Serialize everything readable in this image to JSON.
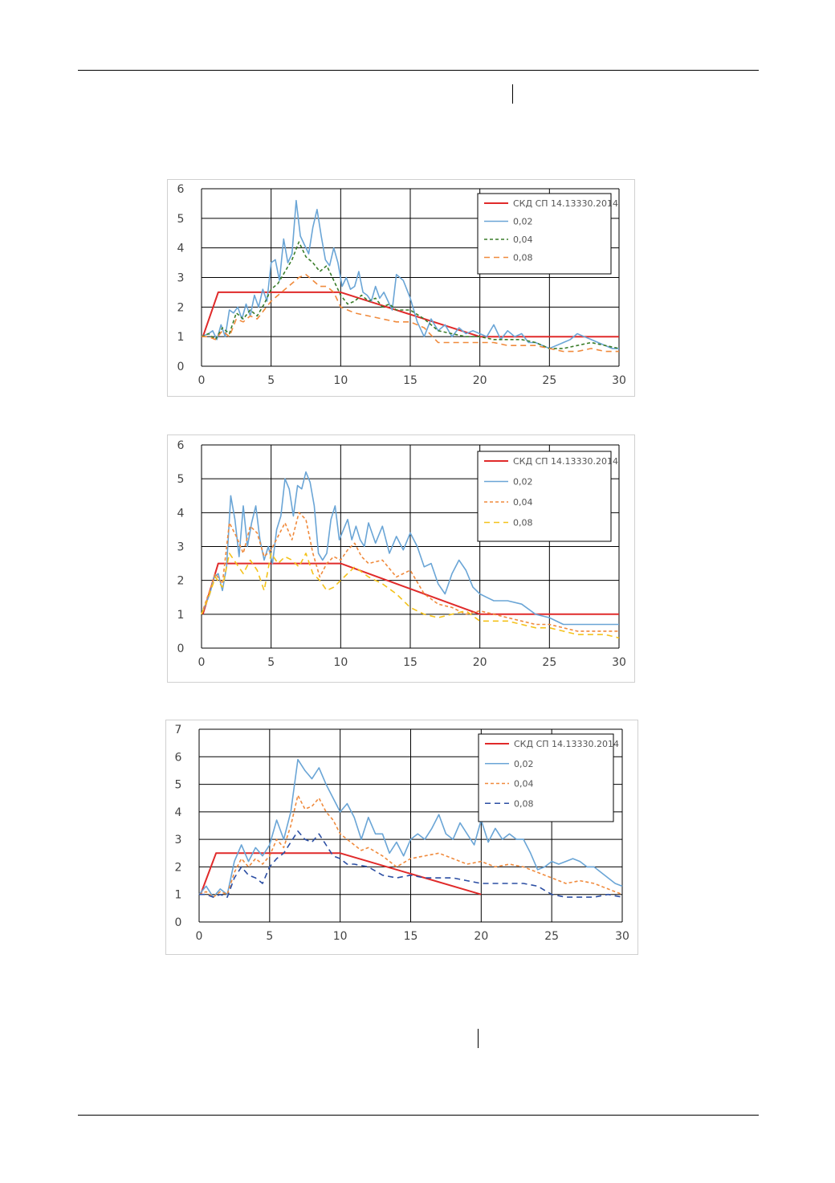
{
  "chart_data": [
    {
      "type": "line",
      "xlim": [
        0,
        30
      ],
      "ylim": [
        0,
        6
      ],
      "x_ticks": [
        "0",
        "5",
        "10",
        "15",
        "20",
        "25",
        "30"
      ],
      "y_ticks": [
        "0",
        "1",
        "2",
        "3",
        "4",
        "5",
        "6"
      ],
      "grid": true,
      "legend_position": "top-right",
      "series": [
        {
          "name": "СКД СП 14.13330.2014",
          "color": "#e02a2a",
          "dash": "solid",
          "x": [
            0.1,
            1.2,
            10,
            20,
            30
          ],
          "y": [
            1.0,
            2.5,
            2.5,
            1.0,
            1.0
          ]
        },
        {
          "name": "0,02",
          "color": "#6aa5d6",
          "dash": "solid",
          "x": [
            0.0,
            0.5,
            0.8,
            1.1,
            1.4,
            1.7,
            2.0,
            2.3,
            2.6,
            2.9,
            3.2,
            3.5,
            3.8,
            4.1,
            4.4,
            4.7,
            5.0,
            5.3,
            5.6,
            5.9,
            6.2,
            6.5,
            6.8,
            7.1,
            7.4,
            7.7,
            8.0,
            8.3,
            8.6,
            8.9,
            9.2,
            9.5,
            9.8,
            10.1,
            10.4,
            10.7,
            11.0,
            11.3,
            11.6,
            11.9,
            12.2,
            12.5,
            12.8,
            13.1,
            13.4,
            13.7,
            14.0,
            14.5,
            15.0,
            15.5,
            16.0,
            16.5,
            17.0,
            17.5,
            18.0,
            18.5,
            19.0,
            19.5,
            20.0,
            20.5,
            21.0,
            21.5,
            22.0,
            22.5,
            23.0,
            23.5,
            24.0,
            24.5,
            25.0,
            25.5,
            26.0,
            26.5,
            27.0,
            27.5,
            28.0,
            28.5,
            29.0,
            29.5,
            30.0
          ],
          "y": [
            1.0,
            1.1,
            1.2,
            0.9,
            1.4,
            1.0,
            1.9,
            1.8,
            2.0,
            1.6,
            2.1,
            1.7,
            2.4,
            2.0,
            2.6,
            2.2,
            3.5,
            3.6,
            2.9,
            4.3,
            3.5,
            3.8,
            5.6,
            4.4,
            4.1,
            3.8,
            4.7,
            5.3,
            4.4,
            3.6,
            3.4,
            4.0,
            3.5,
            2.7,
            3.0,
            2.6,
            2.7,
            3.2,
            2.5,
            2.4,
            2.2,
            2.7,
            2.3,
            2.5,
            2.2,
            1.9,
            3.1,
            2.9,
            2.3,
            1.5,
            1.0,
            1.6,
            1.2,
            1.4,
            1.0,
            1.3,
            1.1,
            1.2,
            1.1,
            1.0,
            1.4,
            0.9,
            1.2,
            1.0,
            1.1,
            0.8,
            0.8,
            0.7,
            0.6,
            0.7,
            0.8,
            0.9,
            1.1,
            1.0,
            0.9,
            0.8,
            0.7,
            0.6,
            0.6
          ]
        },
        {
          "name": "0,04",
          "color": "#3a7d2a",
          "dash": "4,3",
          "x": [
            0.0,
            0.5,
            1.0,
            1.5,
            2.0,
            2.5,
            3.0,
            3.5,
            4.0,
            4.5,
            5.0,
            5.5,
            6.0,
            6.5,
            7.0,
            7.5,
            8.0,
            8.5,
            9.0,
            9.5,
            10.0,
            10.5,
            11.0,
            11.5,
            12.0,
            12.5,
            13.0,
            13.5,
            14.0,
            15.0,
            16.0,
            17.0,
            18.0,
            19.0,
            20.0,
            21.0,
            22.0,
            23.0,
            24.0,
            25.0,
            26.0,
            27.0,
            28.0,
            29.0,
            30.0
          ],
          "y": [
            1.0,
            1.1,
            0.9,
            1.3,
            1.1,
            1.8,
            1.6,
            1.9,
            1.7,
            2.1,
            2.6,
            2.8,
            3.2,
            3.6,
            4.2,
            3.7,
            3.5,
            3.2,
            3.4,
            2.9,
            2.4,
            2.1,
            2.2,
            2.4,
            2.2,
            2.3,
            2.0,
            2.1,
            1.9,
            1.9,
            1.6,
            1.2,
            1.1,
            1.0,
            1.0,
            0.9,
            0.9,
            0.9,
            0.8,
            0.6,
            0.6,
            0.7,
            0.8,
            0.7,
            0.6
          ]
        },
        {
          "name": "0,08",
          "color": "#f08a3c",
          "dash": "7,5",
          "x": [
            0.0,
            0.5,
            1.0,
            1.5,
            2.0,
            2.5,
            3.0,
            3.5,
            4.0,
            4.5,
            5.0,
            5.5,
            6.0,
            6.5,
            7.0,
            7.5,
            8.0,
            8.5,
            9.0,
            9.5,
            10.0,
            11.0,
            12.0,
            13.0,
            14.0,
            15.0,
            16.0,
            17.0,
            18.0,
            19.0,
            20.0,
            21.0,
            22.0,
            23.0,
            24.0,
            25.0,
            26.0,
            27.0,
            28.0,
            29.0,
            30.0
          ],
          "y": [
            1.0,
            1.0,
            0.9,
            1.2,
            1.0,
            1.6,
            1.5,
            1.7,
            1.6,
            1.9,
            2.2,
            2.4,
            2.6,
            2.8,
            3.0,
            3.1,
            2.9,
            2.7,
            2.7,
            2.5,
            2.0,
            1.8,
            1.7,
            1.6,
            1.5,
            1.5,
            1.3,
            0.8,
            0.8,
            0.8,
            0.8,
            0.8,
            0.7,
            0.7,
            0.7,
            0.6,
            0.5,
            0.5,
            0.6,
            0.5,
            0.5
          ]
        }
      ]
    },
    {
      "type": "line",
      "xlim": [
        0,
        30
      ],
      "ylim": [
        0,
        6
      ],
      "x_ticks": [
        "0",
        "5",
        "10",
        "15",
        "20",
        "25",
        "30"
      ],
      "y_ticks": [
        "0",
        "1",
        "2",
        "3",
        "4",
        "5",
        "6"
      ],
      "grid": true,
      "legend_position": "top-right",
      "series": [
        {
          "name": "СКД СП 14.13330.2014",
          "color": "#e02a2a",
          "dash": "solid",
          "x": [
            0.1,
            1.2,
            10,
            20,
            30
          ],
          "y": [
            1.0,
            2.5,
            2.5,
            1.0,
            1.0
          ]
        },
        {
          "name": "0,02",
          "color": "#6aa5d6",
          "dash": "solid",
          "x": [
            0.0,
            0.3,
            0.6,
            0.9,
            1.2,
            1.5,
            1.8,
            2.1,
            2.4,
            2.7,
            3.0,
            3.3,
            3.6,
            3.9,
            4.2,
            4.5,
            4.8,
            5.1,
            5.4,
            5.7,
            6.0,
            6.3,
            6.6,
            6.9,
            7.2,
            7.5,
            7.8,
            8.1,
            8.4,
            8.7,
            9.0,
            9.3,
            9.6,
            9.9,
            10.2,
            10.5,
            10.8,
            11.1,
            11.4,
            11.7,
            12.0,
            12.5,
            13.0,
            13.5,
            14.0,
            14.5,
            15.0,
            15.5,
            16.0,
            16.5,
            17.0,
            17.5,
            18.0,
            18.5,
            19.0,
            19.5,
            20.0,
            20.5,
            21.0,
            22.0,
            23.0,
            24.0,
            25.0,
            26.0,
            27.0,
            28.0,
            29.0,
            30.0
          ],
          "y": [
            1.0,
            1.3,
            1.6,
            2.1,
            2.2,
            1.7,
            2.4,
            4.5,
            3.8,
            2.7,
            4.2,
            3.0,
            3.7,
            4.2,
            3.2,
            2.6,
            3.0,
            2.5,
            3.5,
            3.9,
            5.0,
            4.7,
            3.9,
            4.8,
            4.7,
            5.2,
            4.9,
            4.2,
            2.8,
            2.6,
            2.8,
            3.8,
            4.2,
            3.2,
            3.5,
            3.8,
            3.2,
            3.6,
            3.2,
            3.0,
            3.7,
            3.1,
            3.6,
            2.8,
            3.3,
            2.9,
            3.4,
            3.0,
            2.4,
            2.5,
            1.9,
            1.6,
            2.2,
            2.6,
            2.3,
            1.8,
            1.6,
            1.5,
            1.4,
            1.4,
            1.3,
            1.0,
            0.9,
            0.7,
            0.7,
            0.7,
            0.7,
            0.7
          ]
        },
        {
          "name": "0,04",
          "color": "#f08a3c",
          "dash": "4,3",
          "x": [
            0.0,
            0.5,
            1.0,
            1.5,
            2.0,
            2.5,
            3.0,
            3.5,
            4.0,
            4.5,
            5.0,
            5.5,
            6.0,
            6.5,
            7.0,
            7.5,
            8.0,
            8.5,
            9.0,
            9.5,
            10.0,
            10.5,
            11.0,
            11.5,
            12.0,
            13.0,
            14.0,
            15.0,
            16.0,
            17.0,
            18.0,
            19.0,
            20.0,
            21.0,
            22.0,
            23.0,
            24.0,
            25.0,
            26.0,
            27.0,
            28.0,
            29.0,
            30.0
          ],
          "y": [
            1.0,
            1.6,
            2.2,
            1.9,
            3.7,
            3.3,
            2.8,
            3.6,
            3.4,
            2.7,
            2.9,
            3.3,
            3.7,
            3.2,
            4.0,
            3.8,
            2.8,
            2.1,
            2.5,
            2.7,
            2.6,
            2.9,
            3.1,
            2.7,
            2.5,
            2.6,
            2.1,
            2.3,
            1.6,
            1.3,
            1.2,
            1.0,
            1.1,
            1.0,
            0.9,
            0.8,
            0.7,
            0.7,
            0.6,
            0.5,
            0.5,
            0.5,
            0.5
          ]
        },
        {
          "name": "0,08",
          "color": "#f4c21a",
          "dash": "7,5",
          "x": [
            0.0,
            0.5,
            1.0,
            1.5,
            2.0,
            2.5,
            3.0,
            3.5,
            4.0,
            4.5,
            5.0,
            5.5,
            6.0,
            6.5,
            7.0,
            7.5,
            8.0,
            8.5,
            9.0,
            9.5,
            10.0,
            10.5,
            11.0,
            12.0,
            13.0,
            14.0,
            15.0,
            16.0,
            17.0,
            18.0,
            19.0,
            20.0,
            21.0,
            22.0,
            23.0,
            24.0,
            25.0,
            26.0,
            27.0,
            28.0,
            29.0,
            30.0
          ],
          "y": [
            1.0,
            1.5,
            2.1,
            1.8,
            2.8,
            2.5,
            2.2,
            2.6,
            2.3,
            1.7,
            2.8,
            2.5,
            2.7,
            2.6,
            2.4,
            2.8,
            2.2,
            2.0,
            1.7,
            1.8,
            2.0,
            2.2,
            2.4,
            2.1,
            1.9,
            1.6,
            1.2,
            1.0,
            0.9,
            1.0,
            1.1,
            0.8,
            0.8,
            0.8,
            0.7,
            0.6,
            0.6,
            0.5,
            0.4,
            0.4,
            0.4,
            0.3
          ]
        }
      ]
    },
    {
      "type": "line",
      "xlim": [
        0,
        30
      ],
      "ylim": [
        0,
        7
      ],
      "x_ticks": [
        "0",
        "5",
        "10",
        "15",
        "20",
        "25",
        "30"
      ],
      "y_ticks": [
        "0",
        "1",
        "2",
        "3",
        "4",
        "5",
        "6",
        "7"
      ],
      "grid": true,
      "legend_position": "top-right",
      "series": [
        {
          "name": "СКД СП 14.13330.2014",
          "color": "#e02a2a",
          "dash": "solid",
          "x": [
            0.1,
            1.2,
            10,
            20
          ],
          "y": [
            1.0,
            2.5,
            2.5,
            1.0
          ]
        },
        {
          "name": "0,02",
          "color": "#6aa5d6",
          "dash": "solid",
          "x": [
            0.0,
            0.5,
            1.0,
            1.5,
            2.0,
            2.5,
            3.0,
            3.5,
            4.0,
            4.5,
            5.0,
            5.5,
            6.0,
            6.5,
            7.0,
            7.5,
            8.0,
            8.5,
            9.0,
            9.5,
            10.0,
            10.5,
            11.0,
            11.5,
            12.0,
            12.5,
            13.0,
            13.5,
            14.0,
            14.5,
            15.0,
            15.5,
            16.0,
            16.5,
            17.0,
            17.5,
            18.0,
            18.5,
            19.0,
            19.5,
            20.0,
            20.5,
            21.0,
            21.5,
            22.0,
            22.5,
            23.0,
            23.5,
            24.0,
            24.5,
            25.0,
            25.5,
            26.0,
            26.5,
            27.0,
            27.5,
            28.0,
            28.5,
            29.0,
            29.5,
            30.0
          ],
          "y": [
            1.0,
            1.3,
            0.9,
            1.2,
            1.0,
            2.2,
            2.8,
            2.2,
            2.7,
            2.4,
            2.8,
            3.7,
            3.0,
            4.0,
            5.9,
            5.5,
            5.2,
            5.6,
            5.0,
            4.5,
            4.0,
            4.3,
            3.8,
            3.0,
            3.8,
            3.2,
            3.2,
            2.5,
            2.9,
            2.4,
            3.0,
            3.2,
            3.0,
            3.4,
            3.9,
            3.2,
            3.0,
            3.6,
            3.2,
            2.8,
            3.7,
            2.9,
            3.4,
            3.0,
            3.2,
            3.0,
            3.0,
            2.5,
            1.9,
            2.0,
            2.2,
            2.1,
            2.2,
            2.3,
            2.2,
            2.0,
            2.0,
            1.8,
            1.6,
            1.4,
            1.3
          ]
        },
        {
          "name": "0,04",
          "color": "#f08a3c",
          "dash": "4,3",
          "x": [
            0.0,
            0.5,
            1.0,
            1.5,
            2.0,
            2.5,
            3.0,
            3.5,
            4.0,
            4.5,
            5.0,
            5.5,
            6.0,
            6.5,
            7.0,
            7.5,
            8.0,
            8.5,
            9.0,
            9.5,
            10.0,
            10.5,
            11.0,
            11.5,
            12.0,
            13.0,
            14.0,
            15.0,
            16.0,
            17.0,
            18.0,
            19.0,
            20.0,
            21.0,
            22.0,
            23.0,
            24.0,
            25.0,
            26.0,
            27.0,
            28.0,
            29.0,
            30.0
          ],
          "y": [
            1.0,
            1.1,
            0.9,
            1.1,
            1.0,
            1.8,
            2.3,
            2.0,
            2.3,
            2.1,
            2.4,
            3.0,
            2.7,
            3.5,
            4.6,
            4.1,
            4.2,
            4.5,
            4.0,
            3.7,
            3.2,
            3.0,
            2.8,
            2.6,
            2.7,
            2.4,
            2.0,
            2.3,
            2.4,
            2.5,
            2.3,
            2.1,
            2.2,
            2.0,
            2.1,
            2.0,
            1.8,
            1.6,
            1.4,
            1.5,
            1.4,
            1.2,
            1.0
          ]
        },
        {
          "name": "0,08",
          "color": "#2b4ea3",
          "dash": "7,5",
          "x": [
            0.0,
            0.5,
            1.0,
            1.5,
            2.0,
            2.5,
            3.0,
            3.5,
            4.0,
            4.5,
            5.0,
            5.5,
            6.0,
            6.5,
            7.0,
            7.5,
            8.0,
            8.5,
            9.0,
            9.5,
            10.0,
            10.5,
            11.0,
            12.0,
            13.0,
            14.0,
            15.0,
            16.0,
            17.0,
            18.0,
            19.0,
            20.0,
            21.0,
            22.0,
            23.0,
            24.0,
            25.0,
            26.0,
            27.0,
            28.0,
            29.0,
            30.0
          ],
          "y": [
            1.0,
            1.0,
            0.9,
            1.0,
            0.9,
            1.6,
            2.0,
            1.7,
            1.6,
            1.4,
            2.0,
            2.3,
            2.5,
            2.9,
            3.3,
            3.0,
            2.9,
            3.2,
            2.8,
            2.4,
            2.3,
            2.1,
            2.1,
            2.0,
            1.7,
            1.6,
            1.7,
            1.6,
            1.6,
            1.6,
            1.5,
            1.4,
            1.4,
            1.4,
            1.4,
            1.3,
            1.0,
            0.9,
            0.9,
            0.9,
            1.0,
            0.9
          ]
        }
      ]
    }
  ]
}
